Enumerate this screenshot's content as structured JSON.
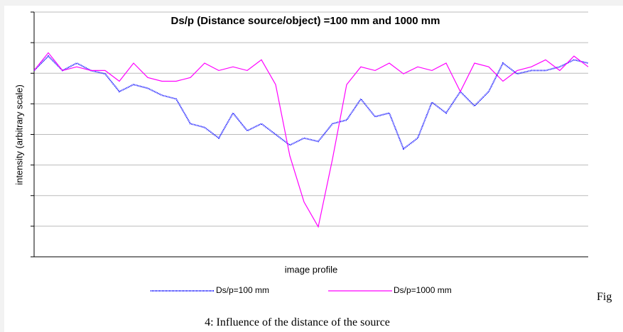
{
  "chart_data": {
    "type": "line",
    "title": "Ds/p (Distance source/object) =100 mm and 1000 mm",
    "ylabel": "intensity (arbitrary scale)",
    "xlabel": "image profile",
    "ylim": [
      0,
      8
    ],
    "yticks": [
      0,
      1,
      2,
      3,
      4,
      5,
      6,
      7,
      8
    ],
    "grid": true,
    "series": [
      {
        "name": "Ds/p=100 mm",
        "color": "#0000ff",
        "dotted": true,
        "values": [
          6.09,
          6.56,
          6.09,
          6.33,
          6.09,
          5.98,
          5.4,
          5.63,
          5.51,
          5.28,
          5.16,
          4.35,
          4.23,
          3.88,
          4.7,
          4.12,
          4.35,
          4.0,
          3.65,
          3.88,
          3.77,
          4.35,
          4.47,
          5.16,
          4.58,
          4.7,
          3.53,
          3.88,
          5.05,
          4.7,
          5.4,
          4.93,
          5.4,
          6.33,
          5.98,
          6.09,
          6.09,
          6.21,
          6.44,
          6.33
        ]
      },
      {
        "name": "Ds/p=1000 mm",
        "color": "#ff00ff",
        "dotted": false,
        "values": [
          6.09,
          6.67,
          6.09,
          6.21,
          6.09,
          6.09,
          5.74,
          6.33,
          5.86,
          5.74,
          5.74,
          5.86,
          6.33,
          6.09,
          6.21,
          6.09,
          6.44,
          5.63,
          3.3,
          1.79,
          0.98,
          3.19,
          5.63,
          6.21,
          6.09,
          6.33,
          5.98,
          6.21,
          6.09,
          6.33,
          5.4,
          6.33,
          6.21,
          5.74,
          6.09,
          6.21,
          6.44,
          6.09,
          6.56,
          6.21
        ]
      }
    ]
  },
  "caption": {
    "line1": "Fig",
    "line2": "4: Influence of the distance of the source"
  }
}
